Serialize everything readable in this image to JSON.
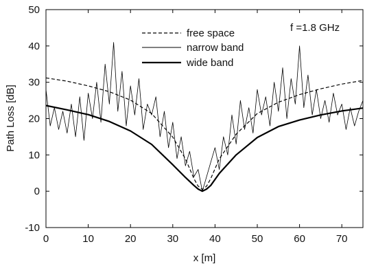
{
  "chart_data": {
    "type": "line",
    "title": "",
    "xlabel": "x [m]",
    "ylabel": "Path Loss [dB]",
    "xlim": [
      0,
      75
    ],
    "ylim": [
      -10,
      50
    ],
    "xticks": [
      0,
      10,
      20,
      30,
      40,
      50,
      60,
      70
    ],
    "yticks": [
      -10,
      0,
      10,
      20,
      30,
      40,
      50
    ],
    "grid": false,
    "legend_position": "top-center",
    "annotation": "f =1.8 GHz",
    "series": [
      {
        "name": "free space",
        "style": "dashed",
        "x": [
          0,
          5,
          10,
          15,
          20,
          25,
          30,
          33,
          35,
          36,
          37,
          38,
          39,
          41,
          45,
          50,
          55,
          60,
          65,
          70,
          75
        ],
        "y": [
          31.2,
          30.3,
          29.0,
          27.4,
          25.1,
          21.4,
          14.9,
          8.9,
          3.5,
          1.4,
          0.5,
          1.4,
          3.5,
          8.9,
          15.7,
          21.4,
          24.5,
          26.6,
          28.2,
          29.5,
          30.5
        ]
      },
      {
        "name": "narrow band",
        "style": "thin-solid",
        "x": [
          0,
          1,
          2,
          3,
          4,
          5,
          6,
          7,
          8,
          9,
          10,
          11,
          12,
          13,
          14,
          15,
          16,
          17,
          18,
          19,
          20,
          21,
          22,
          23,
          24,
          25,
          26,
          27,
          28,
          29,
          30,
          31,
          32,
          33,
          34,
          35,
          36,
          37,
          38,
          39,
          40,
          41,
          42,
          43,
          44,
          45,
          46,
          47,
          48,
          49,
          50,
          51,
          52,
          53,
          54,
          55,
          56,
          57,
          58,
          59,
          60,
          61,
          62,
          63,
          64,
          65,
          66,
          67,
          68,
          69,
          70,
          71,
          72,
          73,
          74,
          75
        ],
        "y": [
          28,
          18,
          23,
          17,
          22,
          16,
          24,
          15,
          26,
          14,
          27,
          20,
          30,
          19,
          35,
          24,
          41,
          22,
          33,
          18,
          29,
          21,
          31,
          17,
          24,
          21,
          26,
          15,
          22,
          12,
          19,
          9,
          15,
          7,
          11,
          4,
          6,
          0,
          4,
          8,
          12,
          6,
          15,
          10,
          21,
          13,
          25,
          17,
          23,
          16,
          28,
          21,
          26,
          18,
          30,
          22,
          34,
          20,
          31,
          24,
          40,
          23,
          32,
          21,
          28,
          20,
          25,
          19,
          27,
          21,
          24,
          17,
          23,
          18,
          22,
          25
        ]
      },
      {
        "name": "wide band",
        "style": "thick-solid",
        "x": [
          0,
          5,
          10,
          15,
          20,
          25,
          30,
          33,
          35,
          36,
          37,
          38,
          39,
          41,
          45,
          50,
          55,
          60,
          65,
          70,
          75
        ],
        "y": [
          23.6,
          22.4,
          21.1,
          19.2,
          16.6,
          12.9,
          7.3,
          3.8,
          1.6,
          0.6,
          0.0,
          0.6,
          1.6,
          4.9,
          10.0,
          14.8,
          17.8,
          19.6,
          21.0,
          22.1,
          22.9
        ]
      }
    ]
  }
}
